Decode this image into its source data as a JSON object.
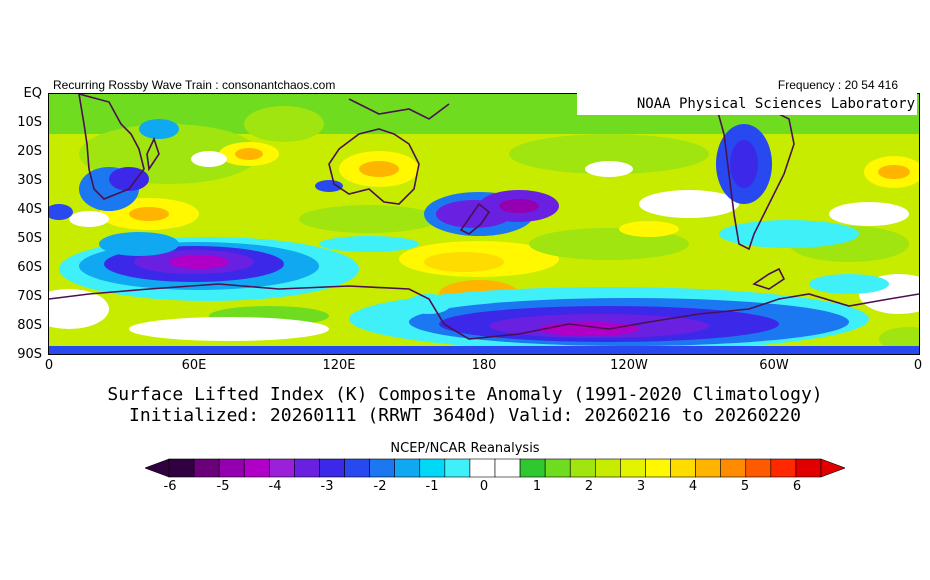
{
  "header": {
    "left_text": "Recurring Rossby Wave Train : consonantchaos.com",
    "right_text": "Frequency : 20 54 416",
    "lab_label": "NOAA Physical Sciences Laboratory"
  },
  "map": {
    "lat_labels": [
      "EQ",
      "10S",
      "20S",
      "30S",
      "40S",
      "50S",
      "60S",
      "70S",
      "80S",
      "90S"
    ],
    "lon_labels": [
      "0",
      "60E",
      "120E",
      "180",
      "120W",
      "60W",
      "0"
    ]
  },
  "titles": {
    "line1": "Surface Lifted Index (K) Composite Anomaly (1991-2020 Climatology)",
    "line2": "Initialized: 20260111 (RRWT 3640d) Valid: 20260216 to 20260220"
  },
  "colorbar": {
    "source": "NCEP/NCAR Reanalysis",
    "tick_labels": [
      "-6",
      "-5",
      "-4",
      "-3",
      "-2",
      "-1",
      "0",
      "1",
      "2",
      "3",
      "4",
      "5",
      "6"
    ],
    "colors": [
      "#300040",
      "#6a007a",
      "#9400b0",
      "#b000c8",
      "#9c20d8",
      "#6a20e0",
      "#3c28e8",
      "#2848f0",
      "#1c78f0",
      "#10a8f0",
      "#00d8f8",
      "#40f0f8",
      "#ffffff",
      "#ffffff",
      "#30c830",
      "#70dc20",
      "#a0e410",
      "#c8ec00",
      "#e4f400",
      "#fff800",
      "#ffdc00",
      "#ffb400",
      "#ff8c00",
      "#ff5a00",
      "#ff2800",
      "#e00000"
    ]
  }
}
